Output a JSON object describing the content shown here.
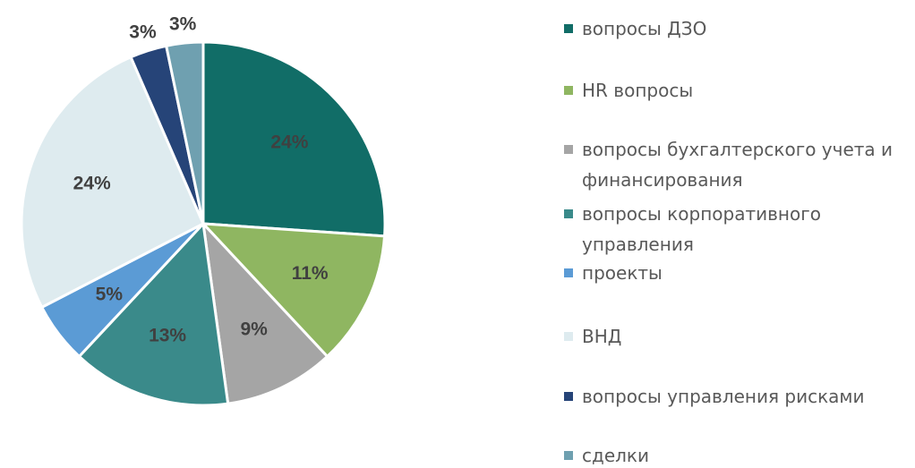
{
  "chart_data": {
    "type": "pie",
    "categories": [
      "вопросы ДЗО",
      "HR вопросы",
      "вопросы бухгалтерского учета и финансирования",
      "вопросы корпоративного управления",
      "проекты",
      "ВНД",
      "вопросы управления рисками",
      "сделки"
    ],
    "values": [
      24,
      11,
      9,
      13,
      5,
      24,
      3,
      3
    ],
    "value_labels": [
      "24%",
      "11%",
      "9%",
      "13%",
      "5%",
      "24%",
      "3%",
      "3%"
    ],
    "colors": [
      "#116d67",
      "#8fb661",
      "#a5a5a5",
      "#3a8a8a",
      "#5b9bd5",
      "#deebef",
      "#264478",
      "#6fa0b0"
    ],
    "legend": "right"
  }
}
